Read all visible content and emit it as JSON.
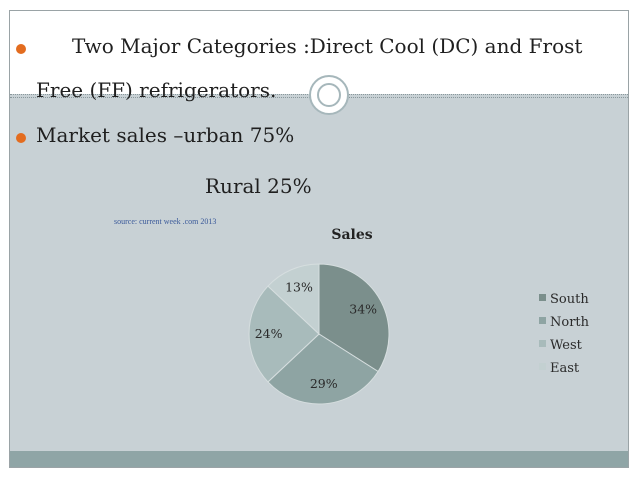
{
  "slide": {
    "bullet1_line1": "Two Major Categories :Direct Cool (DC) and Frost",
    "bullet1_line2": "Free (FF) refrigerators.",
    "bullet2": "Market sales –urban 75%",
    "rural_line": "Rural  25%",
    "source": "source: current week .com 2013",
    "colors": {
      "bullet": "#e36c1f",
      "top_band": "#ffffff",
      "lower_band": "#c8d1d5",
      "bottom_band": "#8fa5a6"
    }
  },
  "chart_data": {
    "type": "pie",
    "title": "Sales",
    "categories": [
      "South",
      "North",
      "West",
      "East"
    ],
    "values": [
      34,
      29,
      24,
      13
    ],
    "labels": [
      "34%",
      "29%",
      "24%",
      "13%"
    ],
    "colors": [
      "#7b8f8c",
      "#8ea4a3",
      "#a8bbbb",
      "#c3d0d1"
    ],
    "legend_position": "right"
  }
}
